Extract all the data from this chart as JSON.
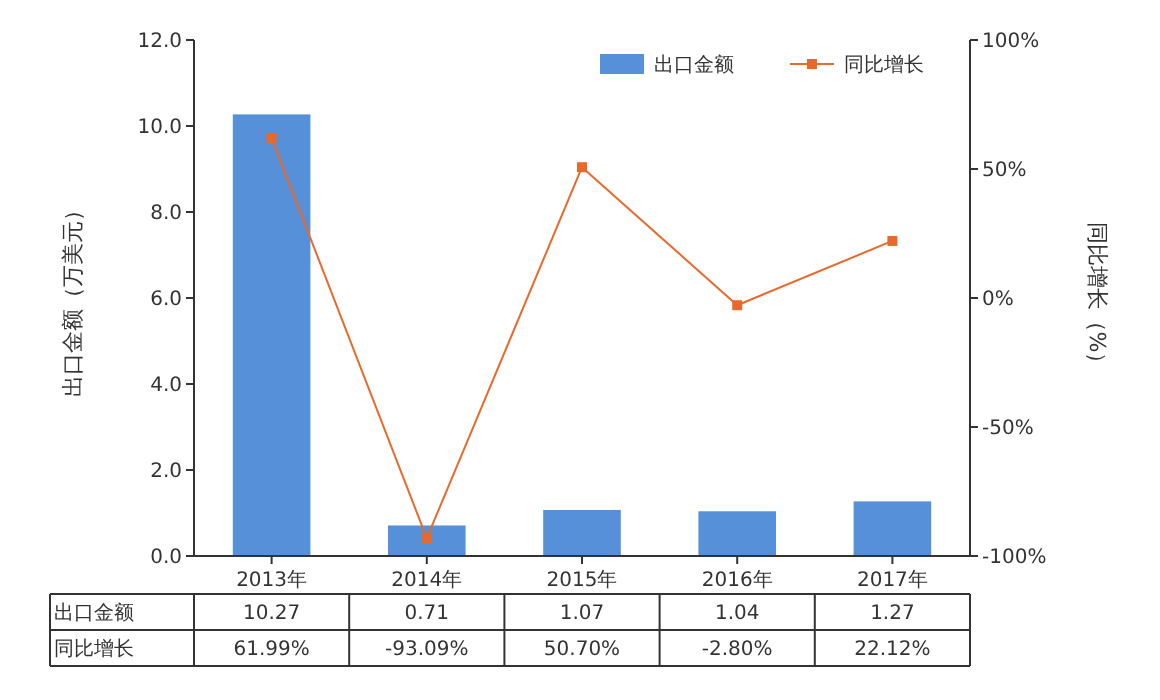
{
  "chart_data": {
    "type": "bar",
    "ylabel": "出口金额（万美元）",
    "y2label": "同比增长（%）",
    "categories": [
      "2013年",
      "2014年",
      "2015年",
      "2016年",
      "2017年"
    ],
    "series": [
      {
        "name": "出口金额",
        "color": "#5590d8",
        "values": [
          10.27,
          0.71,
          1.07,
          1.04,
          1.27
        ],
        "value_labels": [
          "10.27",
          "0.71",
          "1.07",
          "1.04",
          "1.27"
        ]
      },
      {
        "name": "同比增长",
        "type": "line",
        "axis": "y2",
        "color": "#e8692c",
        "marker": "square",
        "values": [
          61.99,
          -93.09,
          50.7,
          -2.8,
          22.12
        ],
        "value_labels": [
          "61.99%",
          "-93.09%",
          "50.70%",
          "-2.80%",
          "22.12%"
        ]
      }
    ],
    "ylim": [
      0,
      12
    ],
    "yticks": [
      {
        "value": 0,
        "label": "0.0"
      },
      {
        "value": 2,
        "label": "2.0"
      },
      {
        "value": 4,
        "label": "4.0"
      },
      {
        "value": 6,
        "label": "6.0"
      },
      {
        "value": 8,
        "label": "8.0"
      },
      {
        "value": 10,
        "label": "10.0"
      },
      {
        "value": 12,
        "label": "12.0"
      }
    ],
    "y2lim": [
      -100,
      100
    ],
    "y2ticks": [
      {
        "value": -100,
        "label": "-100%"
      },
      {
        "value": -50,
        "label": "-50%"
      },
      {
        "value": 0,
        "label": "0%"
      },
      {
        "value": 50,
        "label": "50%"
      },
      {
        "value": 100,
        "label": "100%"
      }
    ],
    "legend": "top right",
    "grid": false
  }
}
